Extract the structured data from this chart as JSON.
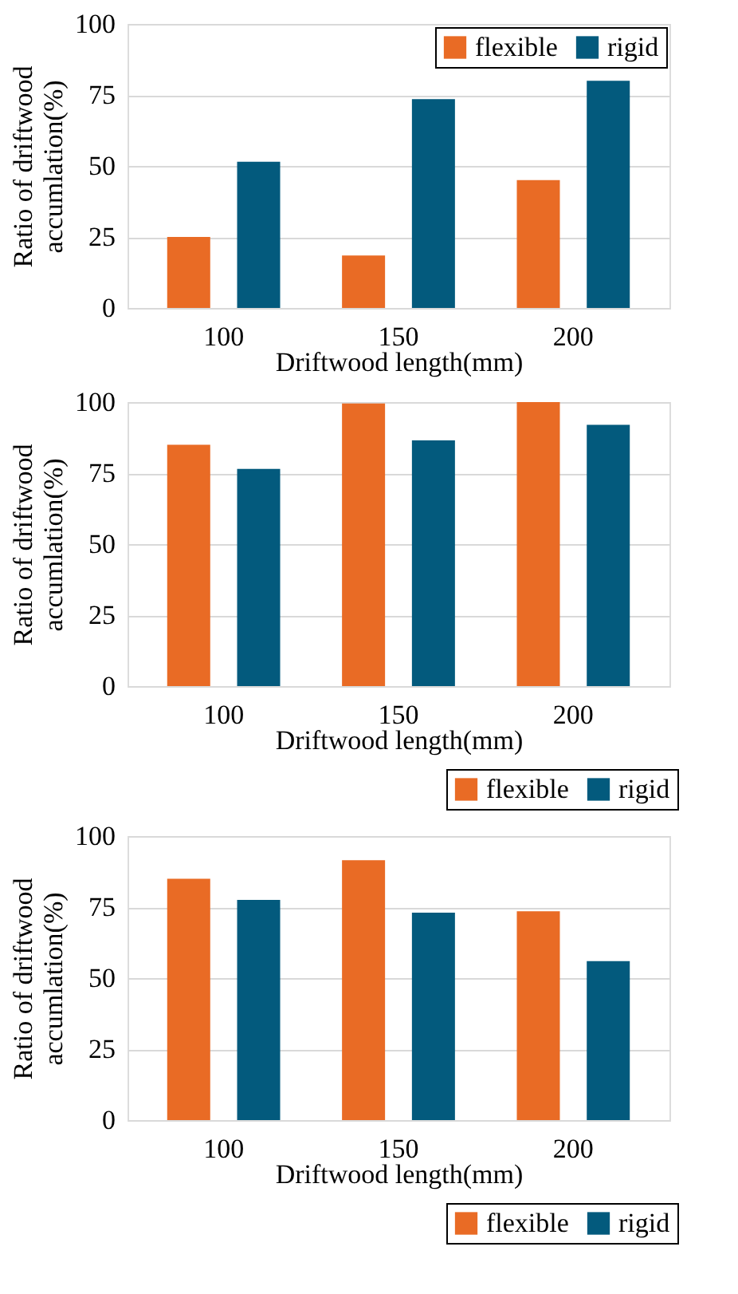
{
  "chart_data": [
    {
      "type": "bar",
      "categories": [
        "100",
        "150",
        "200"
      ],
      "xlabel": "Driftwood length(mm)",
      "ylabel": "Ratio of driftwood accumlation(%)",
      "ylim": [
        0,
        100
      ],
      "yticks": [
        0,
        25,
        50,
        75,
        100
      ],
      "grid": "y",
      "legend": "top right",
      "series": [
        {
          "name": "flexible",
          "color": "#e96b25",
          "values": [
            25,
            18.5,
            45
          ]
        },
        {
          "name": "rigid",
          "color": "#035a7d",
          "values": [
            51.5,
            73.5,
            80
          ]
        }
      ]
    },
    {
      "type": "bar",
      "categories": [
        "100",
        "150",
        "200"
      ],
      "xlabel": "Driftwood length(mm)",
      "ylabel": "Ratio of driftwood accumlation(%)",
      "ylim": [
        0,
        100
      ],
      "yticks": [
        0,
        25,
        50,
        75,
        100
      ],
      "grid": "y",
      "legend": "bottom right",
      "series": [
        {
          "name": "flexible",
          "color": "#e96b25",
          "values": [
            85,
            99.5,
            100
          ]
        },
        {
          "name": "rigid",
          "color": "#035a7d",
          "values": [
            76.5,
            86.5,
            92
          ]
        }
      ]
    },
    {
      "type": "bar",
      "categories": [
        "100",
        "150",
        "200"
      ],
      "xlabel": "Driftwood length(mm)",
      "ylabel": "Ratio of driftwood accumlation(%)",
      "ylim": [
        0,
        100
      ],
      "yticks": [
        0,
        25,
        50,
        75,
        100
      ],
      "grid": "y",
      "legend": "bottom right",
      "series": [
        {
          "name": "flexible",
          "color": "#e96b25",
          "values": [
            85,
            91.5,
            73.5
          ]
        },
        {
          "name": "rigid",
          "color": "#035a7d",
          "values": [
            77.5,
            73,
            56
          ]
        }
      ]
    }
  ]
}
